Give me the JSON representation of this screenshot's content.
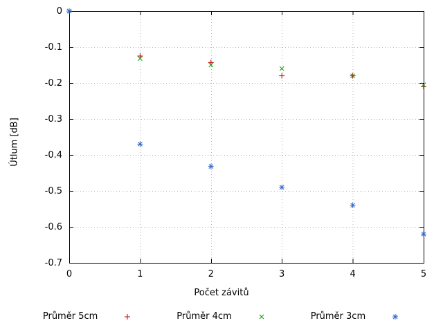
{
  "chart_data": {
    "type": "scatter",
    "title": "",
    "xlabel": "Počet závitů",
    "ylabel": "Útlum [dB]",
    "xlim": [
      0,
      5
    ],
    "ylim": [
      -0.7,
      0
    ],
    "x_ticks": [
      0,
      1,
      2,
      3,
      4,
      5
    ],
    "x_tick_labels": [
      "0",
      "1",
      "2",
      "3",
      "4",
      "5"
    ],
    "y_ticks": [
      0,
      -0.1,
      -0.2,
      -0.3,
      -0.4,
      -0.5,
      -0.6,
      -0.7
    ],
    "y_tick_labels": [
      "0",
      "-0.1",
      "-0.2",
      "-0.3",
      "-0.4",
      "-0.5",
      "-0.6",
      "-0.7"
    ],
    "grid": true,
    "grid_style": "dotted",
    "legend_position": "bottom-center",
    "colors": {
      "series_5cm": "#c00000",
      "series_4cm": "#00a000",
      "series_3cm": "#3366cc",
      "grid": "#b0b0b0",
      "border": "#000000"
    },
    "series": [
      {
        "name": "Průměr 5cm",
        "marker": "plus",
        "color": "#c00000",
        "points": [
          [
            0,
            0
          ],
          [
            1,
            -0.125
          ],
          [
            2,
            -0.143
          ],
          [
            3,
            -0.18
          ],
          [
            4,
            -0.18
          ],
          [
            5,
            -0.21
          ]
        ]
      },
      {
        "name": "Průměr 4cm",
        "marker": "cross",
        "color": "#00a000",
        "points": [
          [
            0,
            0
          ],
          [
            1,
            -0.132
          ],
          [
            2,
            -0.15
          ],
          [
            3,
            -0.16
          ],
          [
            4,
            -0.18
          ],
          [
            5,
            -0.205
          ]
        ]
      },
      {
        "name": "Průměr 3cm",
        "marker": "asterisk",
        "color": "#3366cc",
        "points": [
          [
            0,
            0
          ],
          [
            1,
            -0.37
          ],
          [
            2,
            -0.432
          ],
          [
            3,
            -0.49
          ],
          [
            4,
            -0.54
          ],
          [
            5,
            -0.62
          ]
        ]
      }
    ]
  }
}
